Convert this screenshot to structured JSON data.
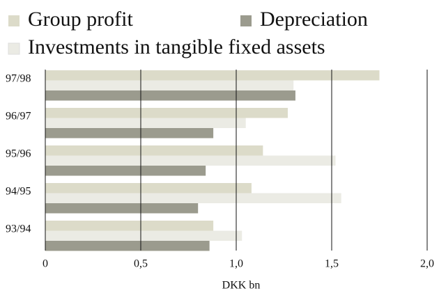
{
  "chart_data": {
    "type": "hbar",
    "categories": [
      "97/98",
      "96/97",
      "95/96",
      "94/95",
      "93/94"
    ],
    "series": [
      {
        "name": "Group profit",
        "color": "#dcdbc9",
        "values": [
          1.75,
          1.27,
          1.14,
          1.08,
          0.88
        ]
      },
      {
        "name": "Investments in tangible fixed assets",
        "color": "#ebebe4",
        "values": [
          1.3,
          1.05,
          1.52,
          1.55,
          1.03
        ]
      },
      {
        "name": "Depreciation",
        "color": "#9b9b8e",
        "values": [
          1.31,
          0.88,
          0.84,
          0.8,
          0.86
        ]
      }
    ],
    "xlabel": "DKK bn",
    "xlim": [
      0,
      2.0
    ],
    "xticks": [
      0,
      {
        "value": 0.5,
        "label": "0,5"
      },
      {
        "value": 1.0,
        "label": "1,0"
      },
      {
        "value": 1.5,
        "label": "1,5"
      },
      {
        "value": 2.0,
        "label": "2,0"
      }
    ],
    "grid": true
  }
}
